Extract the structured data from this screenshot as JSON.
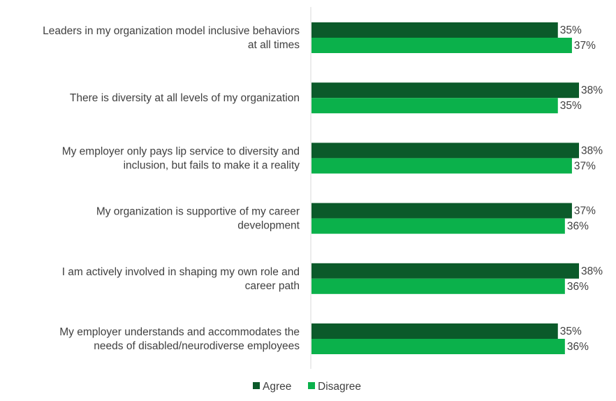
{
  "chart_data": {
    "type": "bar",
    "orientation": "horizontal",
    "categories": [
      [
        "Leaders in my organization model inclusive behaviors",
        "at all times"
      ],
      [
        "There is diversity at all levels of my organization"
      ],
      [
        "My employer only pays lip service to diversity and",
        "inclusion, but fails to make it a reality"
      ],
      [
        "My organization is supportive of my career",
        "development"
      ],
      [
        "I am actively involved in shaping my own role and",
        "career path"
      ],
      [
        "My employer understands and accommodates the",
        "needs of disabled/neurodiverse employees"
      ]
    ],
    "series": [
      {
        "name": "Agree",
        "color": "#0b5a2a",
        "values": [
          35,
          38,
          38,
          37,
          38,
          35
        ]
      },
      {
        "name": "Disagree",
        "color": "#0bb14b",
        "values": [
          37,
          35,
          37,
          36,
          36,
          36
        ]
      }
    ],
    "value_suffix": "%",
    "xlim": [
      0,
      38
    ],
    "grid": false,
    "legend_position": "bottom",
    "axis_color": "#d9d9d9"
  }
}
